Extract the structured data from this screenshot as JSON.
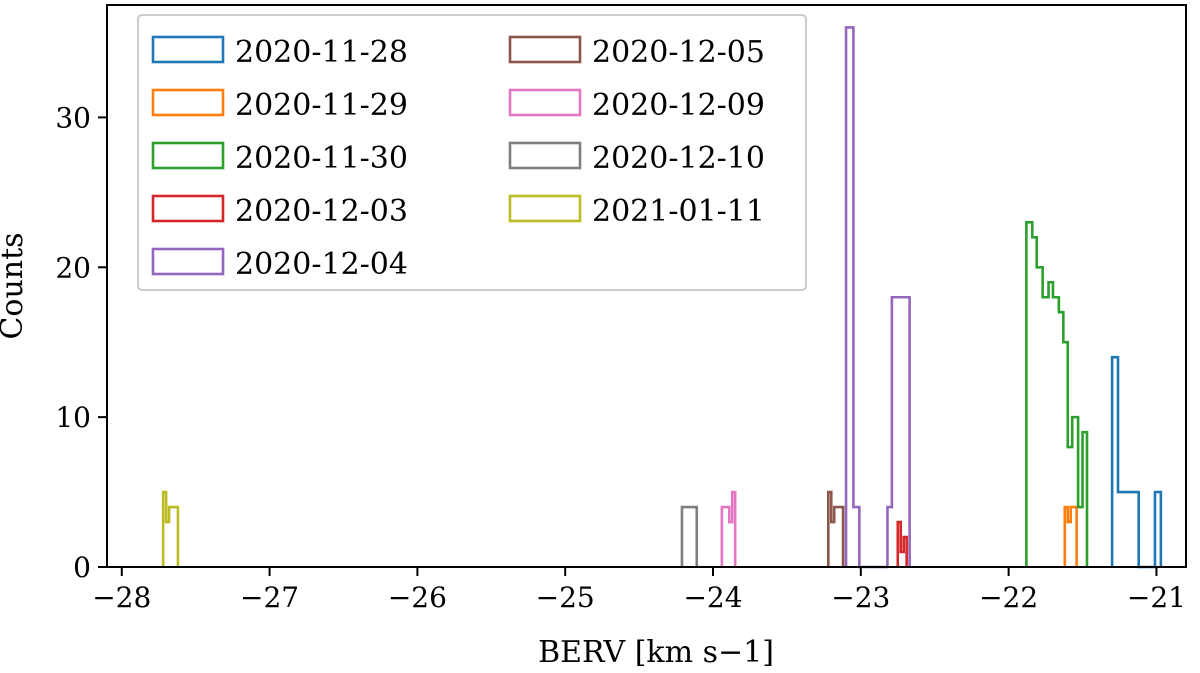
{
  "chart_data": {
    "type": "histogram",
    "xlabel": "BERV [km s−1]",
    "ylabel": "Counts",
    "xlim": [
      -28.1,
      -20.8
    ],
    "ylim": [
      0,
      37.5
    ],
    "x_ticks": [
      -28,
      -27,
      -26,
      -25,
      -24,
      -23,
      -22,
      -21
    ],
    "x_tick_labels": [
      "−28",
      "−27",
      "−26",
      "−25",
      "−24",
      "−23",
      "−22",
      "−21"
    ],
    "y_ticks": [
      0,
      10,
      20,
      30
    ],
    "y_tick_labels": [
      "0",
      "10",
      "20",
      "30"
    ],
    "grid": false,
    "legend_position": "top-left",
    "series": [
      {
        "name": "2020-11-28",
        "color": "#1f77b4",
        "edges": [
          -21.3,
          -21.26,
          -21.22,
          -21.12,
          -21.01,
          -20.97
        ],
        "counts": [
          14,
          5,
          5,
          0,
          5
        ]
      },
      {
        "name": "2020-11-29",
        "color": "#ff7f0e",
        "edges": [
          -21.62,
          -21.6,
          -21.58,
          -21.56,
          -21.54
        ],
        "counts": [
          4,
          3,
          4,
          4
        ]
      },
      {
        "name": "2020-11-30",
        "color": "#2ca02c",
        "edges": [
          -21.88,
          -21.84,
          -21.81,
          -21.77,
          -21.73,
          -21.7,
          -21.66,
          -21.63,
          -21.6,
          -21.57,
          -21.53,
          -21.5,
          -21.47
        ],
        "counts": [
          23,
          22,
          20,
          18,
          19,
          18,
          17,
          15,
          8,
          10,
          4,
          9
        ]
      },
      {
        "name": "2020-12-03",
        "color": "#d62728",
        "edges": [
          -22.75,
          -22.73,
          -22.71,
          -22.69
        ],
        "counts": [
          3,
          1,
          2
        ]
      },
      {
        "name": "2020-12-04",
        "color": "#9467bd",
        "edges": [
          -23.1,
          -23.05,
          -23.01,
          -22.82,
          -22.79,
          -22.67
        ],
        "counts": [
          36,
          4,
          0,
          4,
          18
        ]
      },
      {
        "name": "2020-12-05",
        "color": "#8c564b",
        "edges": [
          -23.22,
          -23.2,
          -23.18,
          -23.16,
          -23.12
        ],
        "counts": [
          5,
          3,
          4,
          4
        ]
      },
      {
        "name": "2020-12-09",
        "color": "#e377c2",
        "edges": [
          -23.94,
          -23.89,
          -23.87,
          -23.85
        ],
        "counts": [
          4,
          3,
          5
        ]
      },
      {
        "name": "2020-12-10",
        "color": "#7f7f7f",
        "edges": [
          -24.21,
          -24.11
        ],
        "counts": [
          4
        ]
      },
      {
        "name": "2021-01-11",
        "color": "#bcbd22",
        "edges": [
          -27.72,
          -27.7,
          -27.68,
          -27.66,
          -27.62
        ],
        "counts": [
          5,
          3,
          4,
          4
        ]
      }
    ]
  }
}
